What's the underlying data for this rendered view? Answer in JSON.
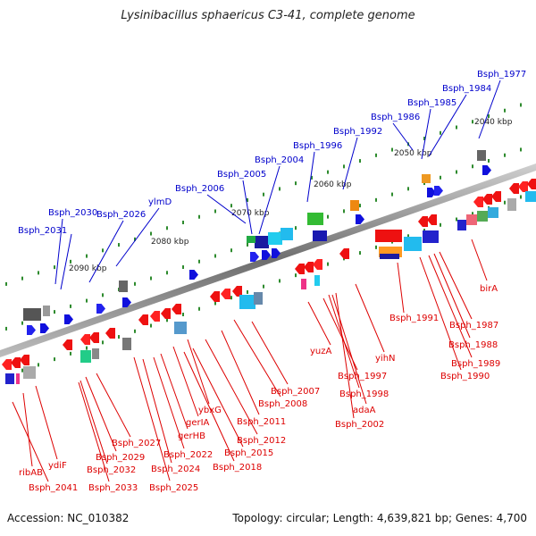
{
  "title": "Lysinibacillus sphaericus C3-41, complete genome",
  "footer": {
    "accession": "Accession: NC_010382",
    "summary": "Topology: circular; Length: 4,639,821 bp; Genes: 4,700"
  },
  "colors": {
    "backbone": "#8c8c8c",
    "forward_label": "#0000cc",
    "reverse_label": "#dd0000",
    "tick": "#2e8b2e"
  },
  "kbp_labels": [
    "2040 kbp",
    "2050 kbp",
    "2060 kbp",
    "2070 kbp",
    "2080 kbp",
    "2090 kbp"
  ],
  "forward_labels": [
    "Bsph_1977",
    "Bsph_1984",
    "Bsph_1985",
    "Bsph_1986",
    "Bsph_1992",
    "Bsph_1996",
    "Bsph_2004",
    "Bsph_2005",
    "Bsph_2006",
    "ylmD",
    "Bsph_2026",
    "Bsph_2030",
    "Bsph_2031"
  ],
  "reverse_labels": [
    "birA",
    "Bsph_1987",
    "Bsph_1988",
    "Bsph_1989",
    "Bsph_1990",
    "Bsph_1991",
    "yihN",
    "yuzA",
    "Bsph_1997",
    "Bsph_1998",
    "adaA",
    "Bsph_2002",
    "Bsph_2007",
    "Bsph_2008",
    "Bsph_2011",
    "Bsph_2012",
    "Bsph_2015",
    "Bsph_2018",
    "ybxG",
    "gerIA",
    "gerHB",
    "Bsph_2022",
    "Bsph_2024",
    "Bsph_2025",
    "Bsph_2027",
    "Bsph_2029",
    "Bsph_2032",
    "Bsph_2033",
    "ydiF",
    "ribAB",
    "Bsph_2041"
  ]
}
